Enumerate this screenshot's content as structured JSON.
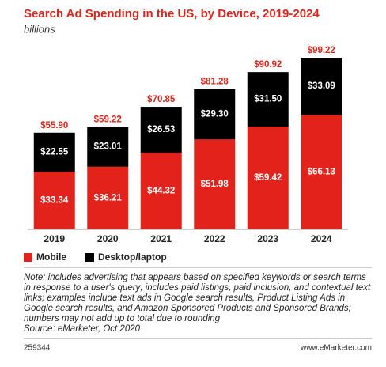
{
  "chart_data": {
    "type": "stacked-bar",
    "title": "Search Ad Spending in the US, by Device, 2019-2024",
    "subtitle": "billions",
    "categories": [
      "2019",
      "2020",
      "2021",
      "2022",
      "2023",
      "2024"
    ],
    "series": [
      {
        "name": "Mobile",
        "color": "#e3231b",
        "values": [
          33.34,
          36.21,
          44.32,
          51.98,
          59.42,
          66.13
        ],
        "value_labels": [
          "$33.34",
          "$36.21",
          "$44.32",
          "$51.98",
          "$59.42",
          "$66.13"
        ]
      },
      {
        "name": "Desktop/laptop",
        "color": "#000000",
        "values": [
          22.55,
          23.01,
          26.53,
          29.3,
          31.5,
          33.09
        ],
        "value_labels": [
          "$22.55",
          "$23.01",
          "$26.53",
          "$29.30",
          "$31.50",
          "$33.09"
        ]
      }
    ],
    "totals": {
      "values": [
        55.9,
        59.22,
        70.85,
        81.28,
        90.92,
        99.22
      ],
      "value_labels": [
        "$55.90",
        "$59.22",
        "$70.85",
        "$81.28",
        "$90.92",
        "$99.22"
      ]
    },
    "note": "Note: includes advertising that appears based on specified keywords or search terms in response to a user's query; includes paid listings, paid inclusion, and contextual text links; examples include text ads in Google search results, Product Listing Ads in Google search results, and Amazon Sponsored Products and Sponsored Brands; numbers may not add up to total due to rounding",
    "source": "Source: eMarketer, Oct 2020",
    "chart_id": "259344",
    "site": "www.eMarketer.com"
  }
}
